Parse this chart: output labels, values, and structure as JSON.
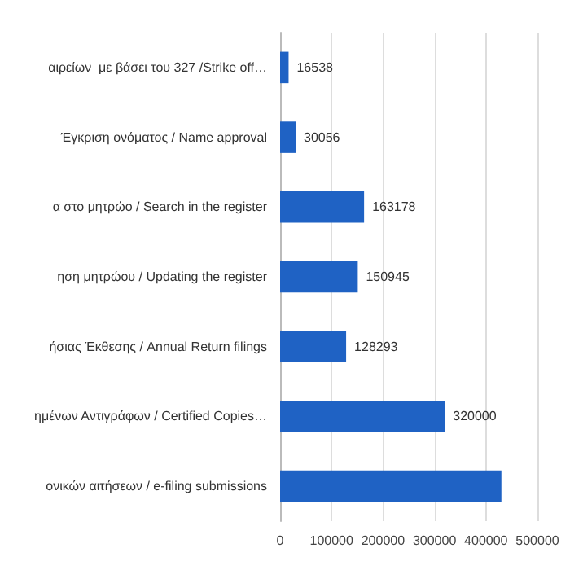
{
  "chart_data": {
    "type": "bar",
    "orientation": "horizontal",
    "categories": [
      "αιρείων  με βάσει του 327 /Strike off…",
      "Έγκριση ονόματος / Name approval",
      "α στο μητρώο / Search in the register",
      "ηση μητρώου / Updating the register",
      "ήσιας Έκθεσης / Annual Return filings",
      "ημένων Αντιγράφων / Certified Copies…",
      "ονικών αιτήσεων / e-filing submissions"
    ],
    "values": [
      16538,
      30056,
      163178,
      150945,
      128293,
      320000,
      430000
    ],
    "value_labels": [
      "16538",
      "30056",
      "163178",
      "150945",
      "128293",
      "320000",
      null
    ],
    "color": "#1f62c4",
    "xlim": [
      0,
      500000
    ],
    "xticks": [
      0,
      100000,
      200000,
      300000,
      400000,
      500000
    ],
    "grid": "x"
  }
}
